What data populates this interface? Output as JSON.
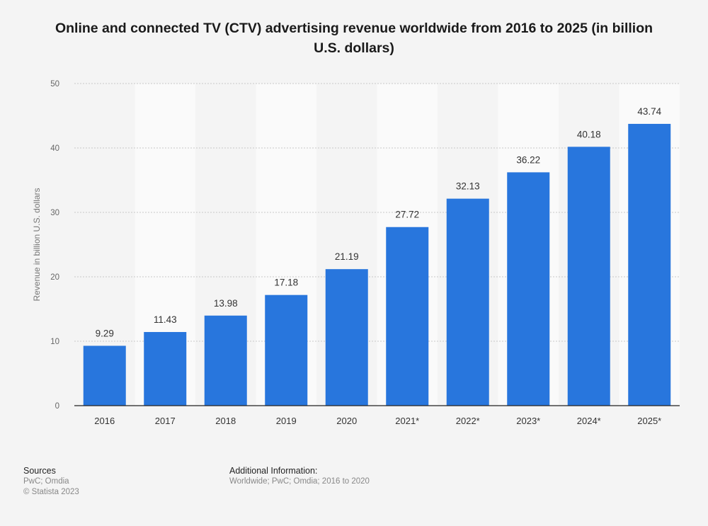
{
  "title": "Online and connected TV (CTV) advertising revenue worldwide from 2016 to 2025 (in billion U.S. dollars)",
  "chart_data": {
    "type": "bar",
    "categories": [
      "2016",
      "2017",
      "2018",
      "2019",
      "2020",
      "2021*",
      "2022*",
      "2023*",
      "2024*",
      "2025*"
    ],
    "values": [
      9.29,
      11.43,
      13.98,
      17.18,
      21.19,
      27.72,
      32.13,
      36.22,
      40.18,
      43.74
    ],
    "value_labels": [
      "9.29",
      "11.43",
      "13.98",
      "17.18",
      "21.19",
      "27.72",
      "32.13",
      "36.22",
      "40.18",
      "43.74"
    ],
    "ylabel": "Revenue in billion U.S. dollars",
    "xlabel": "",
    "ylim": [
      0,
      50
    ],
    "yticks": [
      "0",
      "10",
      "20",
      "30",
      "40",
      "50"
    ],
    "grid": true,
    "bar_color": "#2876dd"
  },
  "footer": {
    "sources_heading": "Sources",
    "sources_text": "PwC; Omdia",
    "copyright": "© Statista 2023",
    "additional_heading": "Additional Information:",
    "additional_text": "Worldwide; PwC; Omdia; 2016 to 2020"
  }
}
